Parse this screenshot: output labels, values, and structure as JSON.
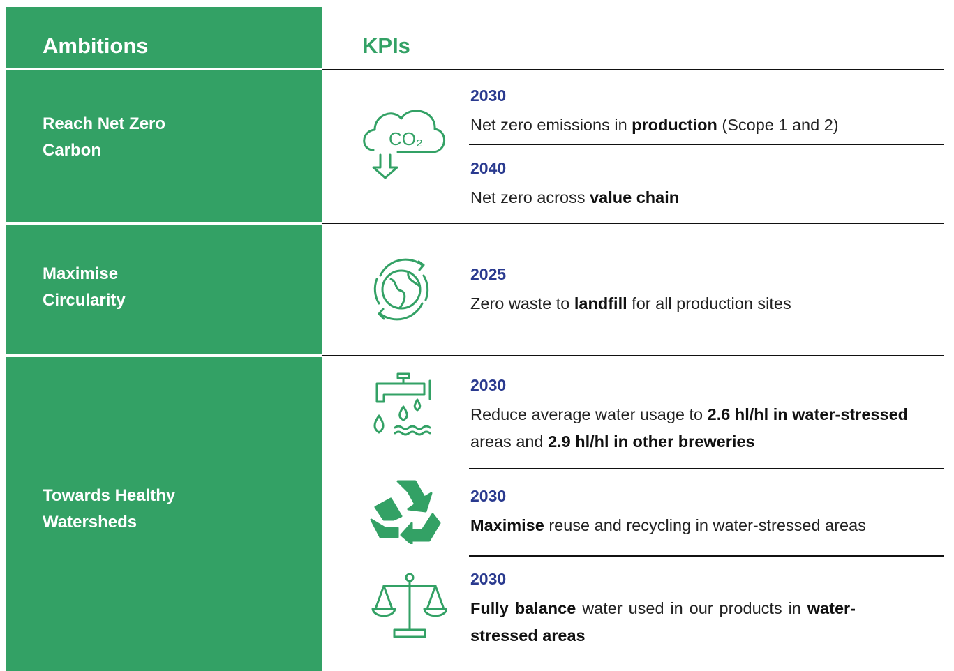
{
  "header": {
    "ambitions": "Ambitions",
    "kpis": "KPIs"
  },
  "rows": [
    {
      "ambition": "Reach Net Zero Carbon",
      "kpis": [
        {
          "year": "2030",
          "text": [
            {
              "text": "Net zero emissions in ",
              "bold": false
            },
            {
              "text": "production",
              "bold": true
            },
            {
              "text": " (Scope 1 and 2)",
              "bold": false
            }
          ]
        },
        {
          "year": "2040",
          "text": [
            {
              "text": "Net zero across ",
              "bold": false
            },
            {
              "text": "value chain",
              "bold": true
            }
          ]
        }
      ]
    },
    {
      "ambition": "Maximise Circularity",
      "kpis": [
        {
          "year": "2025",
          "text": [
            {
              "text": "Zero waste to ",
              "bold": false
            },
            {
              "text": "landfill",
              "bold": true
            },
            {
              "text": " for all production sites",
              "bold": false
            }
          ]
        }
      ]
    },
    {
      "ambition": "Towards Healthy Watersheds",
      "kpis": [
        {
          "year": "2030",
          "text": [
            {
              "text": "Reduce average water usage to ",
              "bold": false
            },
            {
              "text": "2.6 hl/hl in water-stressed",
              "bold": true
            },
            {
              "text": " areas and ",
              "bold": false
            },
            {
              "text": "2.9 hl/hl in other breweries",
              "bold": true
            }
          ]
        },
        {
          "year": "2030",
          "text": [
            {
              "text": "Maximise",
              "bold": true
            },
            {
              "text": " reuse and recycling in water-stressed areas",
              "bold": false
            }
          ]
        },
        {
          "year": "2030",
          "text": [
            {
              "text": "Fully balance",
              "bold": true
            },
            {
              "text": " water used in our products in ",
              "bold": false
            },
            {
              "text": "water-stressed areas",
              "bold": true
            }
          ]
        }
      ]
    }
  ]
}
